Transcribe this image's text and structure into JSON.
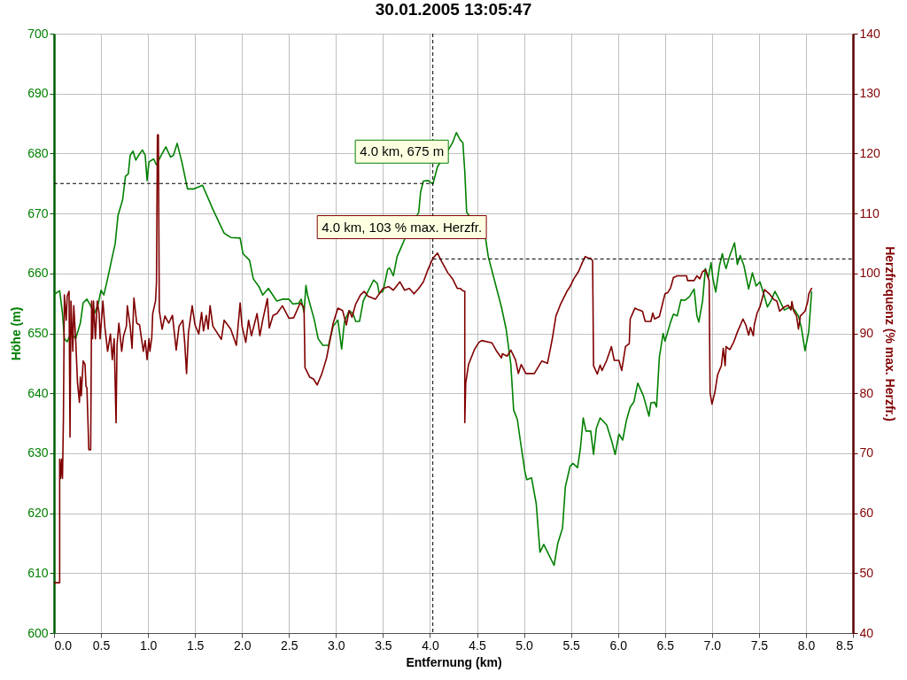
{
  "chart_data": {
    "type": "line",
    "title": "30.01.2005 13:05:47",
    "xlabel": "Entfernung (km)",
    "ylabel": "Höhe (m)",
    "y2label": "Herzfrequenz (% max. Herzfr.)",
    "xlim": [
      0,
      8.5
    ],
    "xticks": [
      {
        "value": 0,
        "label": "0.0"
      },
      0.5,
      {
        "value": 1,
        "label": "1.0"
      },
      1.5,
      {
        "value": 2,
        "label": "2.0"
      },
      2.5,
      {
        "value": 3,
        "label": "3.0"
      },
      3.5,
      {
        "value": 4,
        "label": "4.0"
      },
      4.5,
      {
        "value": 5,
        "label": "5.0"
      },
      5.5,
      {
        "value": 6,
        "label": "6.0"
      },
      6.5,
      {
        "value": 7,
        "label": "7.0"
      },
      7.5,
      {
        "value": 8,
        "label": "8.0"
      },
      8.5
    ],
    "ylim": [
      600,
      700
    ],
    "yticks": [
      600,
      610,
      620,
      630,
      640,
      650,
      660,
      670,
      680,
      690,
      700
    ],
    "y2lim": [
      40,
      140
    ],
    "y2ticks": [
      40,
      50,
      60,
      70,
      80,
      90,
      100,
      110,
      120,
      130,
      140
    ],
    "grid": true,
    "series": [
      {
        "color": "#008000",
        "x": [
          0,
          0.06,
          0.09,
          0.11,
          0.14,
          0.18,
          0.23,
          0.28,
          0.31,
          0.35,
          0.38,
          0.43,
          0.47,
          0.5,
          0.53,
          0.57,
          0.62,
          0.65,
          0.68,
          0.73,
          0.76,
          0.79,
          0.81,
          0.84,
          0.87,
          0.9,
          0.94,
          0.97,
          0.99,
          1.01,
          1.06,
          1.09,
          1.14,
          1.19,
          1.24,
          1.27,
          1.31,
          1.36,
          1.42,
          1.49,
          1.58,
          1.69,
          1.81,
          1.88,
          1.98,
          2.01,
          2.08,
          2.12,
          2.18,
          2.22,
          2.28,
          2.37,
          2.43,
          2.5,
          2.54,
          2.6,
          2.63,
          2.66,
          2.68,
          2.7,
          2.77,
          2.81,
          2.86,
          2.92,
          2.97,
          3.02,
          3.06,
          3.09,
          3.14,
          3.18,
          3.21,
          3.25,
          3.29,
          3.34,
          3.4,
          3.44,
          3.46,
          3.5,
          3.55,
          3.57,
          3.61,
          3.65,
          3.7,
          3.73,
          3.88,
          3.9,
          3.93,
          3.98,
          4.03,
          4.08,
          4.21,
          4.24,
          4.28,
          4.32,
          4.35,
          4.37,
          4.39,
          4.59,
          4.62,
          4.69,
          4.76,
          4.81,
          4.86,
          4.89,
          4.93,
          4.96,
          5.01,
          5.03,
          5.08,
          5.13,
          5.17,
          5.21,
          5.26,
          5.32,
          5.36,
          5.41,
          5.44,
          5.49,
          5.52,
          5.57,
          5.6,
          5.63,
          5.66,
          5.71,
          5.74,
          5.77,
          5.81,
          5.88,
          5.93,
          5.97,
          6.01,
          6.05,
          6.09,
          6.13,
          6.17,
          6.21,
          6.27,
          6.33,
          6.35,
          6.39,
          6.41,
          6.44,
          6.48,
          6.5,
          6.56,
          6.59,
          6.63,
          6.67,
          6.71,
          6.76,
          6.81,
          6.84,
          6.86,
          6.9,
          6.93,
          6.96,
          6.99,
          7.01,
          7.04,
          7.08,
          7.11,
          7.13,
          7.15,
          7.19,
          7.24,
          7.27,
          7.3,
          7.34,
          7.39,
          7.43,
          7.47,
          7.51,
          7.55,
          7.59,
          7.63,
          7.67,
          7.7,
          7.77,
          7.83,
          7.88,
          7.92,
          7.95,
          7.99,
          8.03,
          8.06
        ],
        "values": [
          656.5,
          657.1,
          653.3,
          649.1,
          648.6,
          650.1,
          649.1,
          651.7,
          655.1,
          655.7,
          654.9,
          653.3,
          654.9,
          657.2,
          656.4,
          659.1,
          662.8,
          664.9,
          669.6,
          672.3,
          676.2,
          676.6,
          679.7,
          680.4,
          678.9,
          679.7,
          680.6,
          679.7,
          675.5,
          678.6,
          679.1,
          678.1,
          679.7,
          681.1,
          679.4,
          679.7,
          681.7,
          678.6,
          674.1,
          674.1,
          674.7,
          670.7,
          666.7,
          666.0,
          665.9,
          663.3,
          662.2,
          659.1,
          657.8,
          656.4,
          657.5,
          655.4,
          655.7,
          655.7,
          654.9,
          655.0,
          655.7,
          653.5,
          658.0,
          656.2,
          652.2,
          649.1,
          648.0,
          648.0,
          651.2,
          652.2,
          647.4,
          652.0,
          653.8,
          653.3,
          652.0,
          652.0,
          655.4,
          657.0,
          658.9,
          658.3,
          656.7,
          657.0,
          660.7,
          660.9,
          659.6,
          662.8,
          664.6,
          665.7,
          670.2,
          673.6,
          675.4,
          675.5,
          674.9,
          677.8,
          681.0,
          681.8,
          683.5,
          682.3,
          681.8,
          677.0,
          670.2,
          666.0,
          662.8,
          658.6,
          654.4,
          650.7,
          644.8,
          637.2,
          635.6,
          632.2,
          626.9,
          625.6,
          625.9,
          621.6,
          613.5,
          614.8,
          613.2,
          611.3,
          615.0,
          617.5,
          624.4,
          627.8,
          628.3,
          627.6,
          630.8,
          635.9,
          633.7,
          633.7,
          629.8,
          634.2,
          635.9,
          634.7,
          632.2,
          629.8,
          633.2,
          632.2,
          635.5,
          637.7,
          638.6,
          641.7,
          639.6,
          636.2,
          638.4,
          638.5,
          637.7,
          646.0,
          650.0,
          648.7,
          651.9,
          653.2,
          652.9,
          655.6,
          655.5,
          656.1,
          657.4,
          652.9,
          651.9,
          655.4,
          660.8,
          659.3,
          661.8,
          659.1,
          656.9,
          661.3,
          663.3,
          661.8,
          660.8,
          663.0,
          665.1,
          661.5,
          663.0,
          661.3,
          657.4,
          660.1,
          657.9,
          658.6,
          656.6,
          654.4,
          655.5,
          657.0,
          656.1,
          653.9,
          654.4,
          653.9,
          652.9,
          651.0,
          647.1,
          650.4,
          656.9
        ]
      },
      {
        "color": "#800000",
        "axis": "y2",
        "x": [
          0,
          0.06,
          0.06,
          0.07,
          0.08,
          0.09,
          0.1,
          0.11,
          0.13,
          0.14,
          0.16,
          0.17,
          0.18,
          0.2,
          0.21,
          0.23,
          0.25,
          0.27,
          0.28,
          0.29,
          0.31,
          0.33,
          0.34,
          0.35,
          0.37,
          0.39,
          0.4,
          0.41,
          0.42,
          0.44,
          0.46,
          0.48,
          0.49,
          0.52,
          0.54,
          0.57,
          0.6,
          0.62,
          0.64,
          0.66,
          0.67,
          0.69,
          0.72,
          0.74,
          0.77,
          0.78,
          0.81,
          0.83,
          0.85,
          0.88,
          0.91,
          0.95,
          0.97,
          0.99,
          1.01,
          1.02,
          1.04,
          1.05,
          1.08,
          1.09,
          1.1,
          1.11,
          1.12,
          1.15,
          1.18,
          1.22,
          1.26,
          1.3,
          1.33,
          1.37,
          1.39,
          1.41,
          1.43,
          1.47,
          1.5,
          1.54,
          1.57,
          1.59,
          1.62,
          1.64,
          1.66,
          1.69,
          1.78,
          1.81,
          1.88,
          1.94,
          1.98,
          2,
          2.04,
          2.07,
          2.1,
          2.16,
          2.19,
          2.22,
          2.27,
          2.29,
          2.33,
          2.37,
          2.43,
          2.5,
          2.55,
          2.62,
          2.66,
          2.67,
          2.72,
          2.76,
          2.8,
          2.85,
          2.9,
          2.97,
          3.02,
          3.07,
          3.11,
          3.14,
          3.17,
          3.21,
          3.26,
          3.3,
          3.34,
          3.42,
          3.5,
          3.56,
          3.61,
          3.68,
          3.73,
          3.78,
          3.83,
          3.88,
          3.93,
          3.98,
          4.03,
          4.08,
          4.12,
          4.19,
          4.24,
          4.29,
          4.32,
          4.35,
          4.37,
          4.37,
          4.38,
          4.41,
          4.47,
          4.52,
          4.55,
          4.66,
          4.71,
          4.76,
          4.77,
          4.82,
          4.86,
          4.91,
          4.94,
          4.97,
          5.02,
          5.11,
          5.19,
          5.25,
          5.3,
          5.34,
          5.39,
          5.46,
          5.49,
          5.53,
          5.58,
          5.62,
          5.65,
          5.68,
          5.71,
          5.73,
          5.74,
          5.78,
          5.81,
          5.83,
          5.88,
          5.93,
          5.96,
          6.01,
          6.04,
          6.08,
          6.12,
          6.13,
          6.18,
          6.21,
          6.26,
          6.29,
          6.35,
          6.37,
          6.39,
          6.44,
          6.5,
          6.53,
          6.56,
          6.59,
          6.63,
          6.73,
          6.74,
          6.81,
          6.84,
          6.87,
          6.9,
          6.93,
          6.97,
          6.98,
          7,
          7.03,
          7.06,
          7.1,
          7.12,
          7.14,
          7.15,
          7.17,
          7.19,
          7.23,
          7.27,
          7.33,
          7.36,
          7.39,
          7.41,
          7.44,
          7.45,
          7.48,
          7.51,
          7.56,
          7.61,
          7.66,
          7.69,
          7.72,
          7.77,
          7.81,
          7.84,
          7.85,
          7.87,
          7.9,
          7.92,
          7.94,
          7.99,
          8.02,
          8.03,
          8.06
        ],
        "values": [
          48.4,
          48.4,
          69.0,
          65.8,
          69.0,
          65.8,
          75.9,
          96.4,
          92.2,
          96.2,
          97.0,
          72.7,
          95.4,
          87.0,
          94.6,
          89.1,
          81.7,
          78.5,
          82.7,
          79.6,
          85.4,
          84.8,
          81.2,
          80.9,
          70.6,
          70.6,
          95.4,
          89.1,
          95.4,
          89.1,
          95.4,
          93.3,
          89.1,
          95.4,
          91.2,
          87.0,
          89.9,
          85.6,
          89.1,
          75.1,
          88.0,
          91.7,
          87.0,
          89.6,
          91.2,
          94.6,
          91.2,
          87.5,
          95.9,
          91.7,
          91.4,
          87.0,
          88.8,
          85.6,
          89.1,
          87.0,
          89.3,
          93.3,
          95.4,
          98.5,
          123.1,
          123.1,
          93.8,
          90.7,
          92.9,
          91.7,
          93.0,
          87.2,
          91.2,
          92.2,
          88.5,
          83.3,
          90.1,
          94.6,
          91.4,
          89.9,
          93.5,
          90.4,
          93.0,
          90.7,
          94.6,
          91.2,
          89.0,
          92.2,
          90.7,
          88.0,
          95.1,
          91.2,
          88.5,
          92.2,
          89.6,
          93.3,
          89.6,
          92.2,
          95.8,
          90.9,
          93.0,
          93.3,
          94.6,
          92.5,
          92.6,
          95.1,
          94.3,
          84.3,
          82.7,
          82.4,
          81.4,
          83.3,
          85.9,
          91.7,
          94.2,
          93.8,
          91.4,
          93.8,
          92.7,
          94.9,
          96.4,
          97.0,
          96.2,
          95.7,
          97.5,
          97.8,
          97.2,
          98.6,
          97.2,
          97.5,
          96.6,
          97.5,
          98.6,
          100.7,
          102.5,
          103.4,
          102.1,
          100.1,
          99.1,
          97.5,
          97.5,
          97.1,
          97.0,
          75.1,
          81.7,
          84.8,
          87.2,
          88.5,
          88.8,
          88.4,
          87.0,
          85.9,
          86.6,
          86.2,
          87.2,
          85.6,
          83.3,
          84.8,
          83.3,
          83.3,
          85.4,
          85.0,
          89.0,
          92.9,
          94.9,
          97.1,
          97.8,
          99.1,
          100.3,
          101.8,
          102.8,
          102.6,
          102.5,
          102.1,
          84.6,
          83.2,
          84.7,
          83.8,
          85.5,
          87.8,
          85.5,
          85.5,
          83.8,
          87.8,
          88.3,
          92.4,
          94.2,
          94.0,
          93.7,
          92.0,
          92.0,
          93.4,
          92.4,
          92.8,
          96.6,
          96.8,
          97.6,
          99.3,
          99.6,
          99.6,
          98.8,
          98.8,
          99.6,
          99.1,
          100.3,
          100.6,
          98.8,
          80.1,
          78.2,
          80.1,
          83.1,
          84.6,
          87.5,
          84.6,
          87.8,
          87.5,
          87.3,
          88.5,
          90.2,
          92.4,
          91.4,
          89.7,
          91.0,
          89.6,
          91.4,
          93.4,
          94.4,
          97.3,
          96.6,
          95.6,
          95.4,
          93.7,
          94.4,
          94.7,
          93.9,
          95.3,
          93.7,
          92.9,
          90.7,
          92.9,
          93.7,
          95.4,
          96.6,
          97.5
        ]
      }
    ],
    "ref_lines": [
      {
        "axis": "x",
        "value": 4.03,
        "color": "#000000",
        "line_style": "dashed"
      },
      {
        "axis": "y",
        "value": 675,
        "color": "#000000",
        "line_style": "dashed"
      },
      {
        "axis": "y2",
        "value": 102.4,
        "color": "#000000",
        "line_style": "dashed"
      }
    ],
    "annotations": [
      {
        "text": "4.0 km, 675 m",
        "x": 4.03,
        "y": 675
      },
      {
        "text": "4.0 km, 103 % max. Herzfr.",
        "x": 4.03,
        "y": 662.4
      }
    ]
  }
}
